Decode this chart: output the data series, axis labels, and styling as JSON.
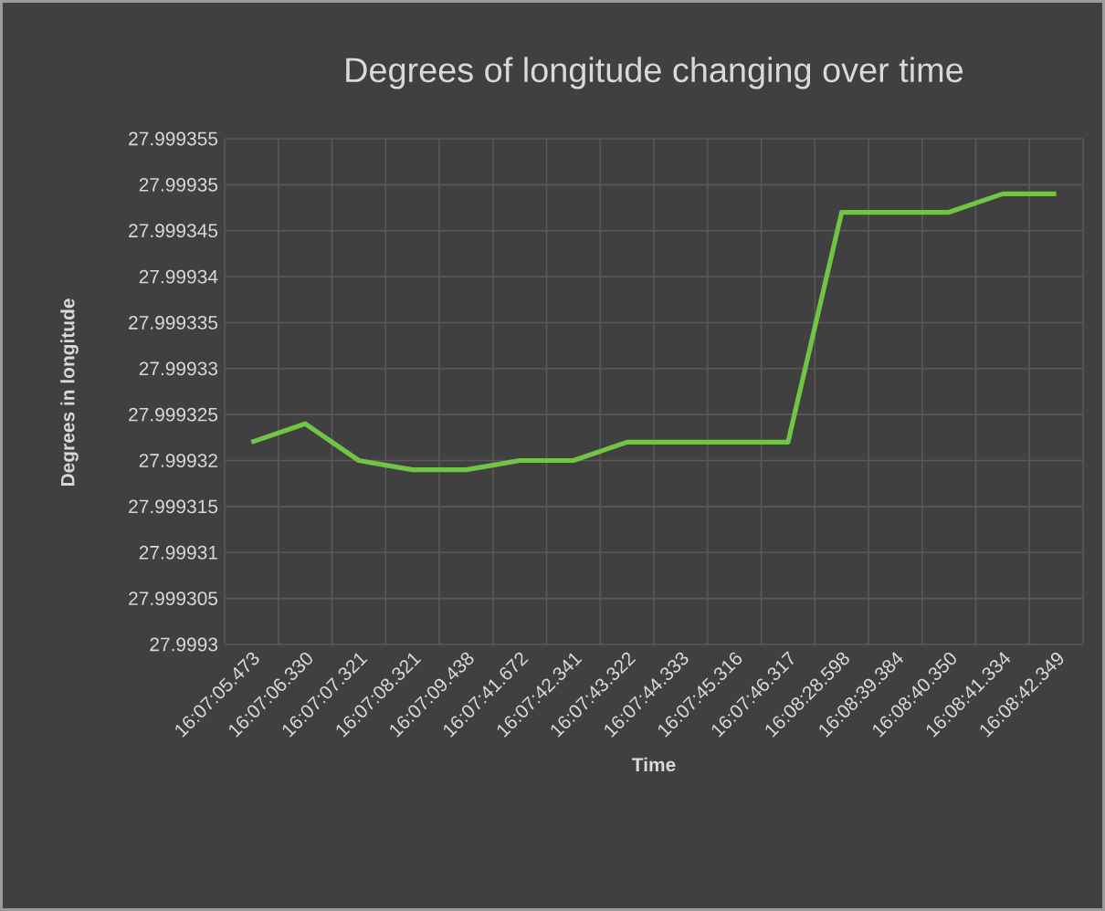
{
  "chart_data": {
    "type": "line",
    "title": "Degrees of longitude changing over time",
    "xlabel": "Time",
    "ylabel": "Degrees in longitude",
    "categories": [
      "16:07:05.473",
      "16:07:06.330",
      "16:07:07.321",
      "16:07:08.321",
      "16:07:09.438",
      "16:07:41.672",
      "16:07:42.341",
      "16:07:43.322",
      "16:07:44.333",
      "16:07:45.316",
      "16:07:46.317",
      "16:08:28.598",
      "16:08:39.384",
      "16:08:40.350",
      "16:08:41.334",
      "16:08:42.349"
    ],
    "series": [
      {
        "color": "#72c445",
        "values": [
          27.999322,
          27.999324,
          27.99932,
          27.999319,
          27.999319,
          27.99932,
          27.99932,
          27.999322,
          27.999322,
          27.999322,
          27.999322,
          27.999347,
          27.999347,
          27.999347,
          27.999349,
          27.999349
        ]
      }
    ],
    "ylim": [
      27.9993,
      27.999355
    ],
    "yticks": [
      27.9993,
      27.999305,
      27.99931,
      27.999315,
      27.99932,
      27.999325,
      27.99933,
      27.999335,
      27.99934,
      27.999345,
      27.99935,
      27.999355
    ],
    "grid": true,
    "marker": "none",
    "line_style": "solid"
  }
}
